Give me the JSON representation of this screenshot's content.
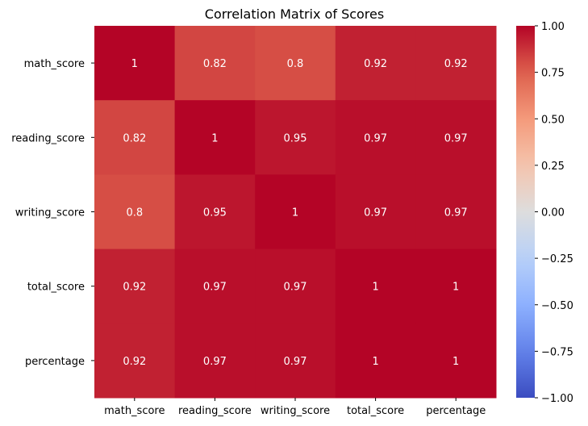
{
  "chart_data": {
    "type": "heatmap",
    "title": "Correlation Matrix of Scores",
    "xlabel": "",
    "ylabel": "",
    "x_categories": [
      "math_score",
      "reading_score",
      "writing_score",
      "total_score",
      "percentage"
    ],
    "y_categories": [
      "math_score",
      "reading_score",
      "writing_score",
      "total_score",
      "percentage"
    ],
    "values": [
      [
        1,
        0.82,
        0.8,
        0.92,
        0.92
      ],
      [
        0.82,
        1,
        0.95,
        0.97,
        0.97
      ],
      [
        0.8,
        0.95,
        1,
        0.97,
        0.97
      ],
      [
        0.92,
        0.97,
        0.97,
        1,
        1
      ],
      [
        0.92,
        0.97,
        0.97,
        1,
        1
      ]
    ],
    "value_labels": [
      [
        "1",
        "0.82",
        "0.8",
        "0.92",
        "0.92"
      ],
      [
        "0.82",
        "1",
        "0.95",
        "0.97",
        "0.97"
      ],
      [
        "0.8",
        "0.95",
        "1",
        "0.97",
        "0.97"
      ],
      [
        "0.92",
        "0.97",
        "0.97",
        "1",
        "1"
      ],
      [
        "0.92",
        "0.97",
        "0.97",
        "1",
        "1"
      ]
    ],
    "colormap": "coolwarm",
    "vmin": -1,
    "vmax": 1,
    "colorbar_ticks": [
      1.0,
      0.75,
      0.5,
      0.25,
      0.0,
      -0.25,
      -0.5,
      -0.75,
      -1.0
    ],
    "colorbar_tick_labels": [
      "1.00",
      "0.75",
      "0.50",
      "0.25",
      "0.00",
      "−0.25",
      "−0.50",
      "−0.75",
      "−1.00"
    ],
    "grid": false,
    "legend": "colorbar-right"
  }
}
